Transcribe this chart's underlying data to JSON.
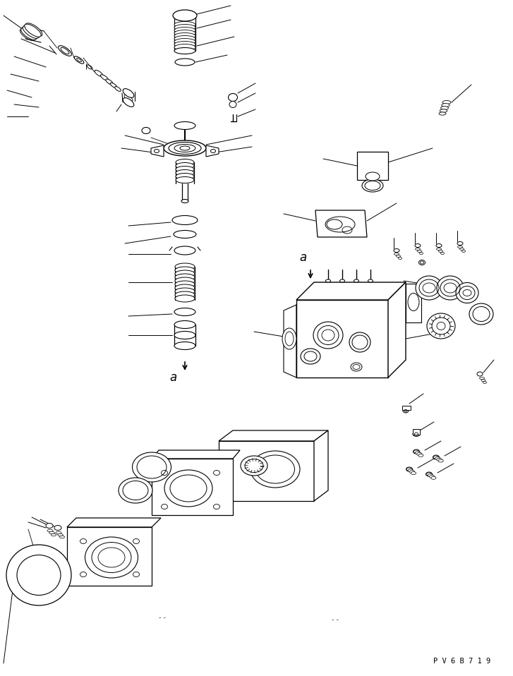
{
  "background_color": "#ffffff",
  "line_color": "#000000",
  "watermark_text": "P V 6 B 7 1 9",
  "figsize": [
    7.27,
    9.58
  ],
  "dpi": 100
}
